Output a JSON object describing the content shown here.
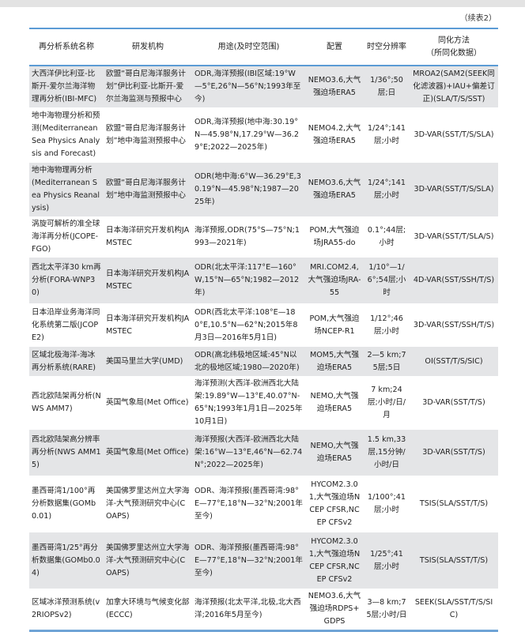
{
  "continued_label": "（续表2）",
  "headers": [
    "再分析系统名称",
    "研发机构",
    "用途(及时空范围)",
    "配置",
    "时空分辨率",
    "同化方法\n（所同化数据）"
  ],
  "rows": [
    [
      "大西洋伊比利亚-比斯开-爱尔兰海洋物理再分析(IBI-MFC)",
      "欧盟“哥白尼海洋服务计划”伊比利亚-比斯开-爱尔兰海监测与预报中心",
      "ODR,海洋预报(IBI区域:19°W—5°E,26°N—56°N;1993年至今)",
      "NEMO3.6,大气强迫场ERA5",
      "1/36°;50层;日",
      "MROA2(SAM2(SEEK同化滤波器)+IAU+偏差订正)(SLA/T/S/SST)"
    ],
    [
      "地中海物理分析和预测(Mediterranean Sea Physics Analysis and Forecast)",
      "欧盟“哥白尼海洋服务计划”地中海监测预报中心",
      "ODR,海洋预报(地中海:30.19°N—45.98°N,17.29°W—36.29°E;2022—2025年)",
      "NEMO4.2,大气强迫场ERA5",
      "1/24°;141层;小时",
      "3D-VAR(SST/T/S/SLA)"
    ],
    [
      "地中海物理再分析(Mediterranean Sea Physics Reanalysis)",
      "欧盟“哥白尼海洋服务计划”地中海监测预报中心",
      "ODR(地中海:6°W—36.29°E,30.19°N—45.98°N;1987—2025年)",
      "NEMO3.6,大气强迫场ERA5",
      "1/24°;141层;小时",
      "3D-VAR(SST/T/S/SLA)"
    ],
    [
      "涡旋可解析的准全球海洋再分析(JCOPE-FGO)",
      "日本海洋研究开发机构JAMSTEC",
      "海洋预报,ODR(75°S—75°N;1993—2021年)",
      "POM,大气强迫场JRA55-do",
      "0.1°;44层;小时",
      "3D-VAR(SST/T/SLA/S)"
    ],
    [
      "西北太平洋30 km再分析(FORA-WNP30)",
      "日本海洋研究开发机构JAMSTEC",
      "ODR(北太平洋:117°E—160°W,15°N—65°N;1982—2012年)",
      "MRI.COM2.4,大气强迫场JRA-55",
      "1/10°—1/6°;54层;小时",
      "4D-VAR(SST/SSH/T/S)"
    ],
    [
      "日本沿岸业务海洋同化系统第二版(JCOPE2)",
      "日本海洋研究开发机构JAMSTEC",
      "ODR(西北太平洋:108°E—180°E,10.5°N—62°N;2015年8月3日—2016年5月1日)",
      "POM,大气强迫场NCEP-R1",
      "1/12°;46层;小时",
      "3D-VAR(SST/SSH/T/S)"
    ],
    [
      "区域北极海洋-海冰再分析系统(RARE)",
      "美国马里兰大学(UMD)",
      "ODR(高北纬极地区域:45°N以北的极地区域;1980—2020年)",
      "MOM5,大气强迫场ERA5",
      "2—5 km;75层;5日",
      "OI(SST/T/S/SIC)"
    ],
    [
      "西北欧陆架再分析(NWS AMM7)",
      "英国气象局(Met Office)",
      "海洋预测(大西洋-欧洲西北大陆架:19.89°W—13°E,40.07°N-65°N;1993年1月1日—2025年10月1日)",
      "NEMO,大气强迫场ERA5",
      "7 km;24层;小时/日/月",
      "3D-VAR(SST/T/S)"
    ],
    [
      "西北欧陆架高分辨率再分析(NWS AMM15)",
      "英国气象局(Met Office)",
      "海洋预报(大西洋-欧洲西北大陆架:16°W—13°E,46°N—62.74N°;2022—2025年)",
      "NEMO,大气强迫场ERA5",
      "1.5 km,33层,15分钟/小时/日",
      "3D-VAR(SST/T/S)"
    ],
    [
      "墨西哥湾1/100°再分析数据集(GOMb0.01)",
      "美国佛罗里达州立大学海洋-大气预测研究中心(COAPS)",
      "ODR、海洋预报(墨西哥湾:98°E—77°E,18°N—32°N;2001年至今)",
      "HYCOM2.3.01,大气强迫场NCEP CFSR,NCEP CFSv2",
      "1/100°;41层;小时",
      "TSIS(SLA/SST/T/S)"
    ],
    [
      "墨西哥湾1/25°再分析数据集(GOMb0.04)",
      "美国佛罗里达州立大学海洋-大气预测研究中心(COAPS)",
      "ODR、海洋预报(墨西哥湾:98°E—77°E,18°N—32°N;2001年至今)",
      "HYCOM2.3.01,大气强迫场NCEP CFSR,NCEP CFSv2",
      "1/25°;41层;小时",
      "TSIS(SLA/SST/T/S)"
    ],
    [
      "区域冰洋预测系统(v2RIOPSv2)",
      "加拿大环境与气候变化部(ECCC)",
      "海洋预报(北太平洋,北极,北大西洋;2016年5月至今)",
      "NEMO3.6,大气强迫场RDPS+GDPS",
      "3—8 km;75层;小时/日",
      "SEEK(SLA/SST/T/S/SIC)"
    ]
  ]
}
